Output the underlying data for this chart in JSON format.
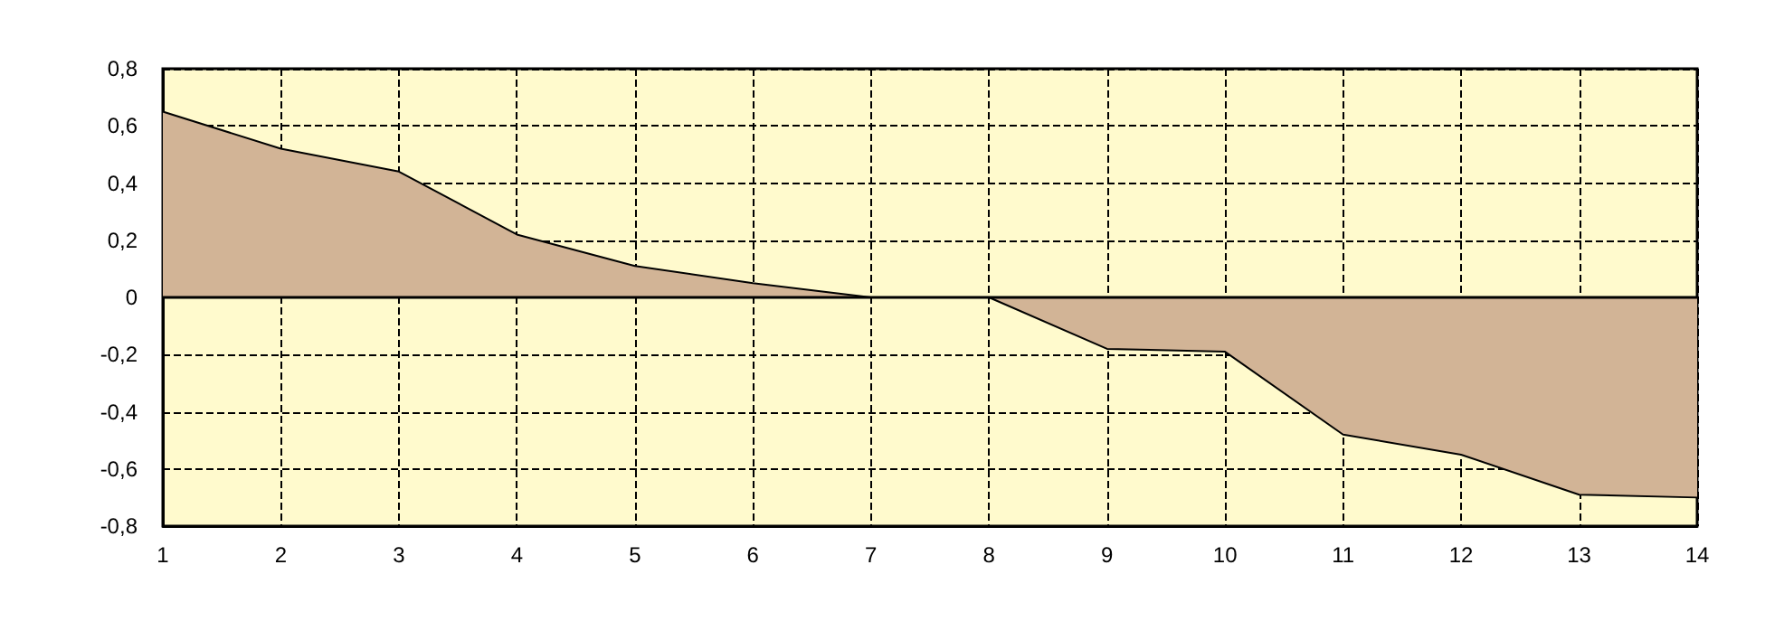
{
  "chart_data": {
    "type": "area",
    "x": [
      1,
      2,
      3,
      4,
      5,
      6,
      7,
      8,
      9,
      10,
      11,
      12,
      13,
      14
    ],
    "series": [
      {
        "color": "#d2b496",
        "values": [
          0.65,
          0.52,
          0.44,
          0.22,
          0.11,
          0.05,
          0,
          0,
          -0.18,
          -0.19,
          -0.48,
          -0.55,
          -0.69,
          -0.7
        ]
      }
    ],
    "xlim": [
      1,
      14
    ],
    "xticks": [
      1,
      2,
      3,
      4,
      5,
      6,
      7,
      8,
      9,
      10,
      11,
      12,
      13,
      14
    ],
    "ylim": [
      -0.8,
      0.8
    ],
    "yticks": [
      {
        "value": -0.8,
        "label": "-0,8"
      },
      {
        "value": -0.6,
        "label": "-0,6"
      },
      {
        "value": -0.4,
        "label": "-0,4"
      },
      {
        "value": -0.2,
        "label": "-0,2"
      },
      {
        "value": 0,
        "label": "0"
      },
      {
        "value": 0.2,
        "label": "0,2"
      },
      {
        "value": 0.4,
        "label": "0,4"
      },
      {
        "value": 0.6,
        "label": "0,6"
      },
      {
        "value": 0.8,
        "label": "0,8"
      }
    ],
    "grid": true,
    "line_style": "solid",
    "marker": "none"
  }
}
